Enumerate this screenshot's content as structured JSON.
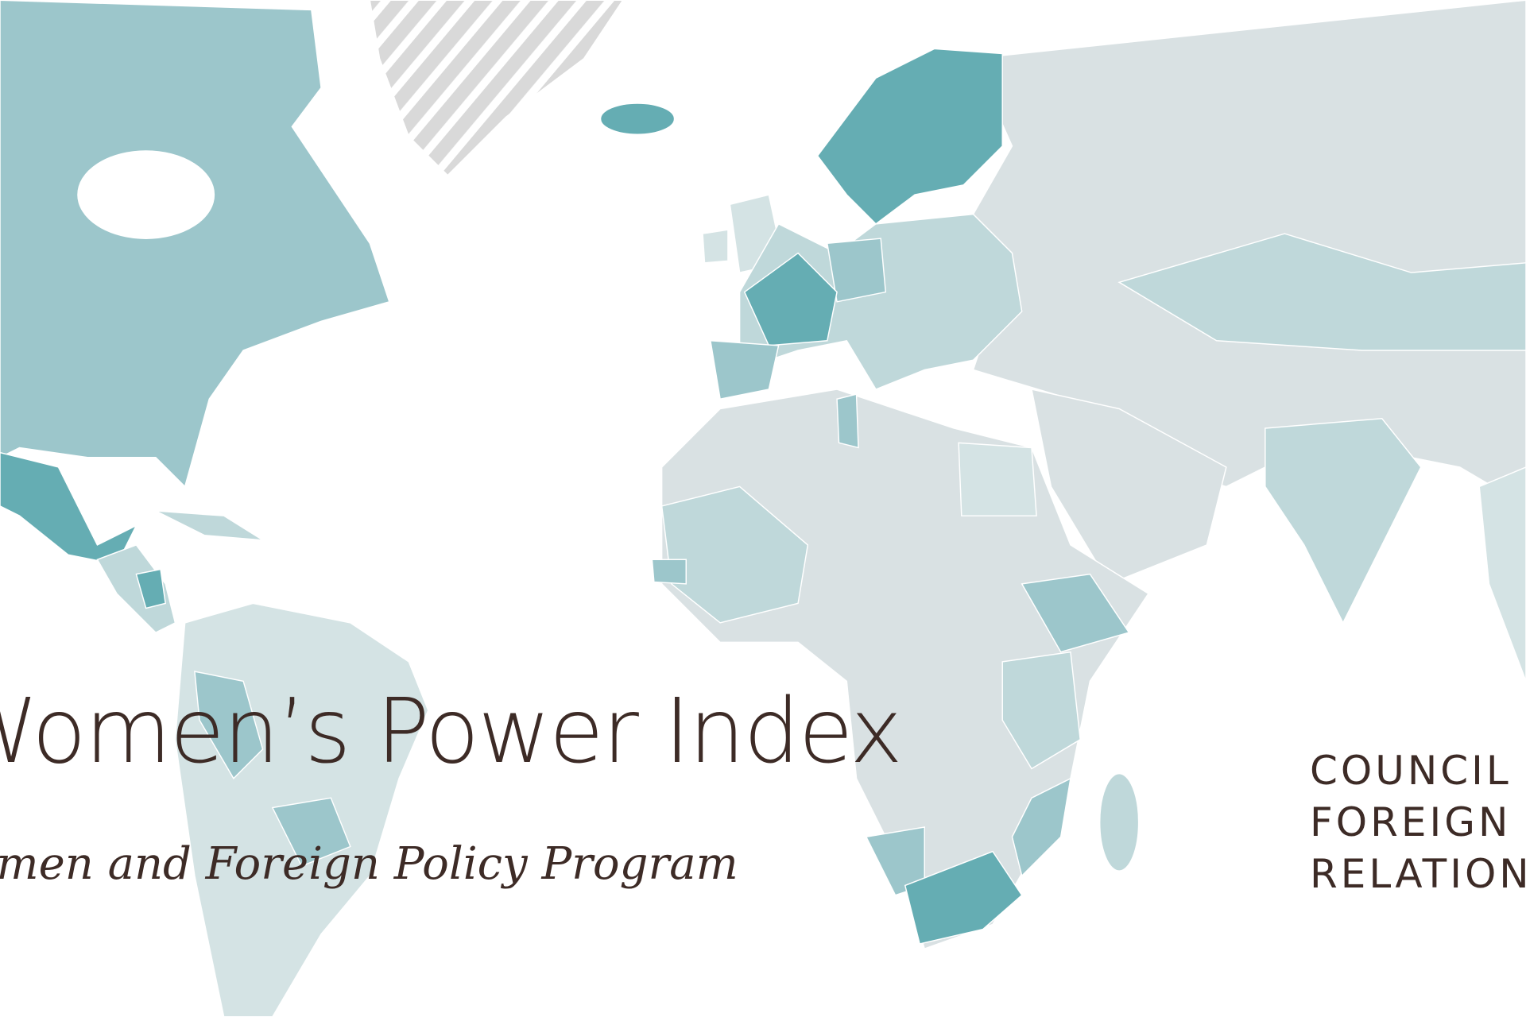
{
  "title": "Women’s Power Index",
  "subtitle": "Women and Foreign Policy Program",
  "logo": {
    "lines": [
      "COUNCIL",
      "FOREIGN",
      "RELATIONS"
    ]
  }
}
